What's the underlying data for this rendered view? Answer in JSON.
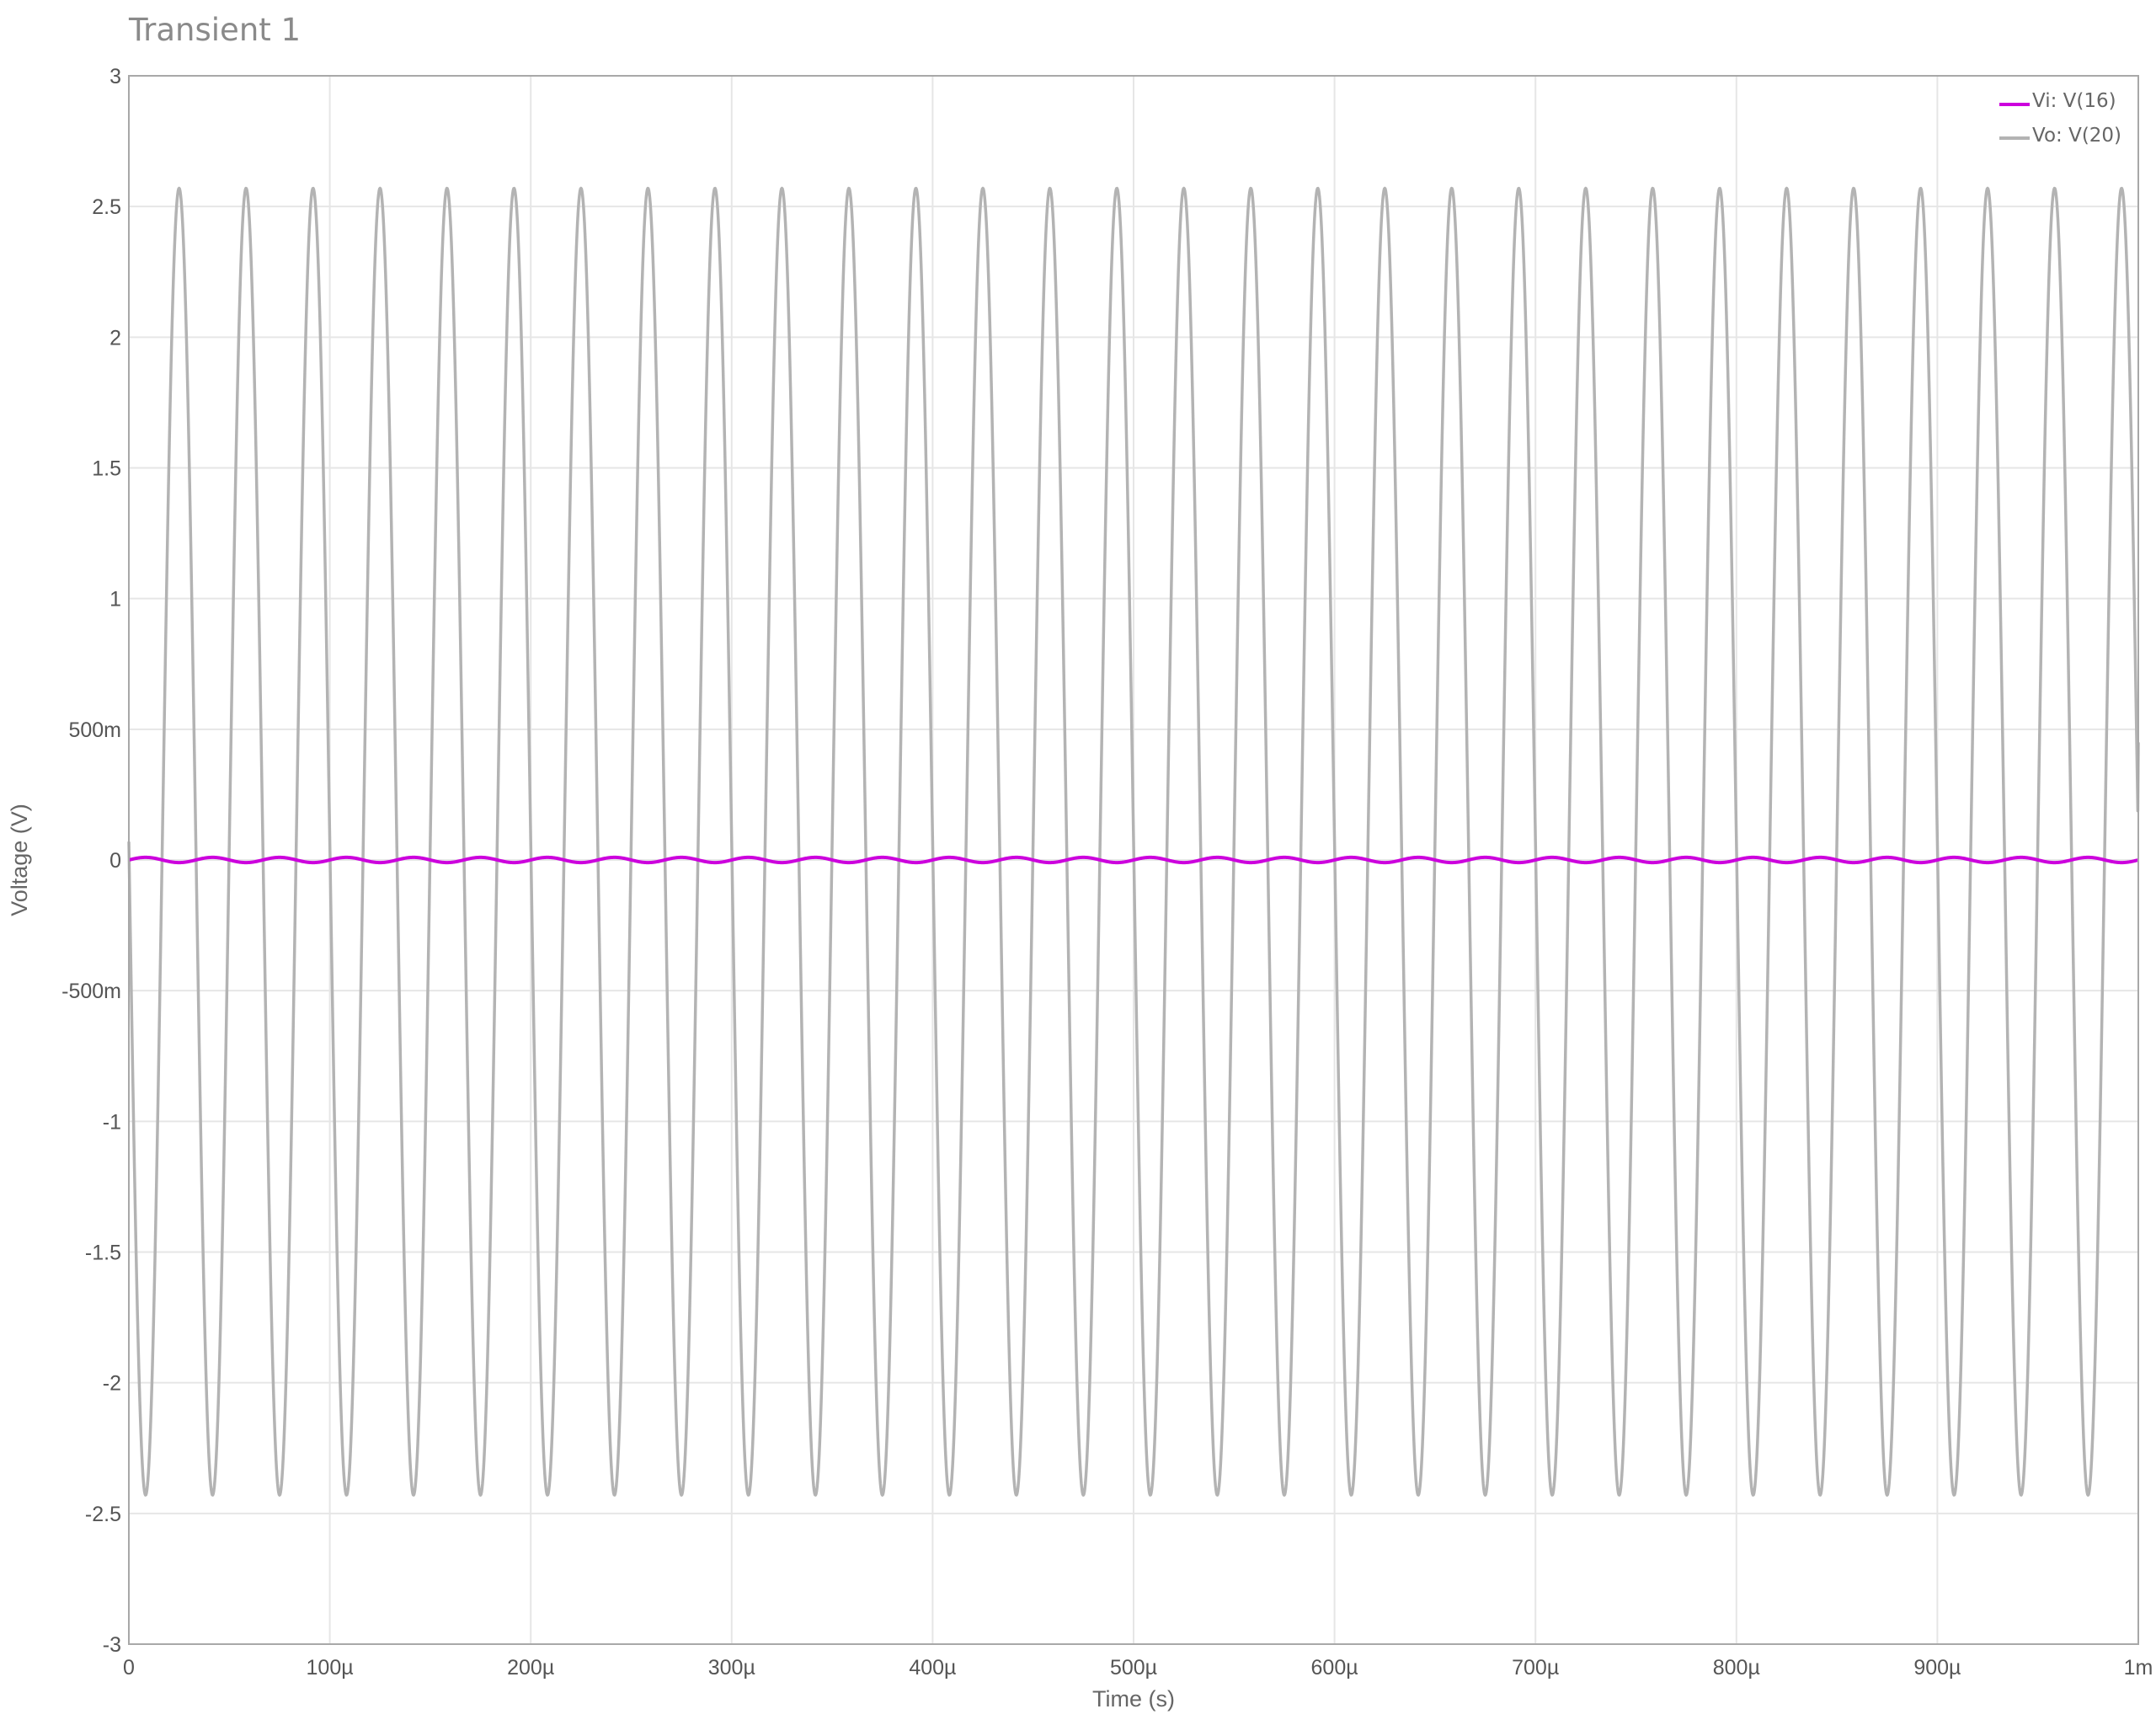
{
  "chart_data": {
    "type": "line",
    "title": "Transient 1",
    "xlabel": "Time (s)",
    "ylabel": "Voltage (V)",
    "xlim": [
      0,
      0.001
    ],
    "ylim": [
      -3,
      3
    ],
    "grid": true,
    "legend_position": "top-right",
    "x_ticks": [
      {
        "value": 0,
        "label": "0"
      },
      {
        "value": 0.0001,
        "label": "100µ"
      },
      {
        "value": 0.0002,
        "label": "200µ"
      },
      {
        "value": 0.0003,
        "label": "300µ"
      },
      {
        "value": 0.0004,
        "label": "400µ"
      },
      {
        "value": 0.0005,
        "label": "500µ"
      },
      {
        "value": 0.0006,
        "label": "600µ"
      },
      {
        "value": 0.0007,
        "label": "700µ"
      },
      {
        "value": 0.0008,
        "label": "800µ"
      },
      {
        "value": 0.0009,
        "label": "900µ"
      },
      {
        "value": 0.001,
        "label": "1m"
      }
    ],
    "y_ticks": [
      {
        "value": 3,
        "label": "3"
      },
      {
        "value": 2.5,
        "label": "2.5"
      },
      {
        "value": 2,
        "label": "2"
      },
      {
        "value": 1.5,
        "label": "1.5"
      },
      {
        "value": 1,
        "label": "1"
      },
      {
        "value": 0.5,
        "label": "500m"
      },
      {
        "value": 0,
        "label": "0"
      },
      {
        "value": -0.5,
        "label": "-500m"
      },
      {
        "value": -1,
        "label": "-1"
      },
      {
        "value": -1.5,
        "label": "-1.5"
      },
      {
        "value": -2,
        "label": "-2"
      },
      {
        "value": -2.5,
        "label": "-2.5"
      },
      {
        "value": -3,
        "label": "-3"
      }
    ],
    "series": [
      {
        "name": "Vi: V(16)",
        "color": "#cc00dd",
        "waveform": "sine",
        "frequency_hz": 30000,
        "amplitude": 0.01,
        "offset": 0.0,
        "phase_deg": 0
      },
      {
        "name": "Vo: V(20)",
        "color": "#b3b3b3",
        "waveform": "sine",
        "frequency_hz": 30000,
        "amplitude": 2.5,
        "offset": 0.07,
        "phase_deg": 180,
        "initial_value": 0.07,
        "final_value": 0.45
      }
    ]
  }
}
